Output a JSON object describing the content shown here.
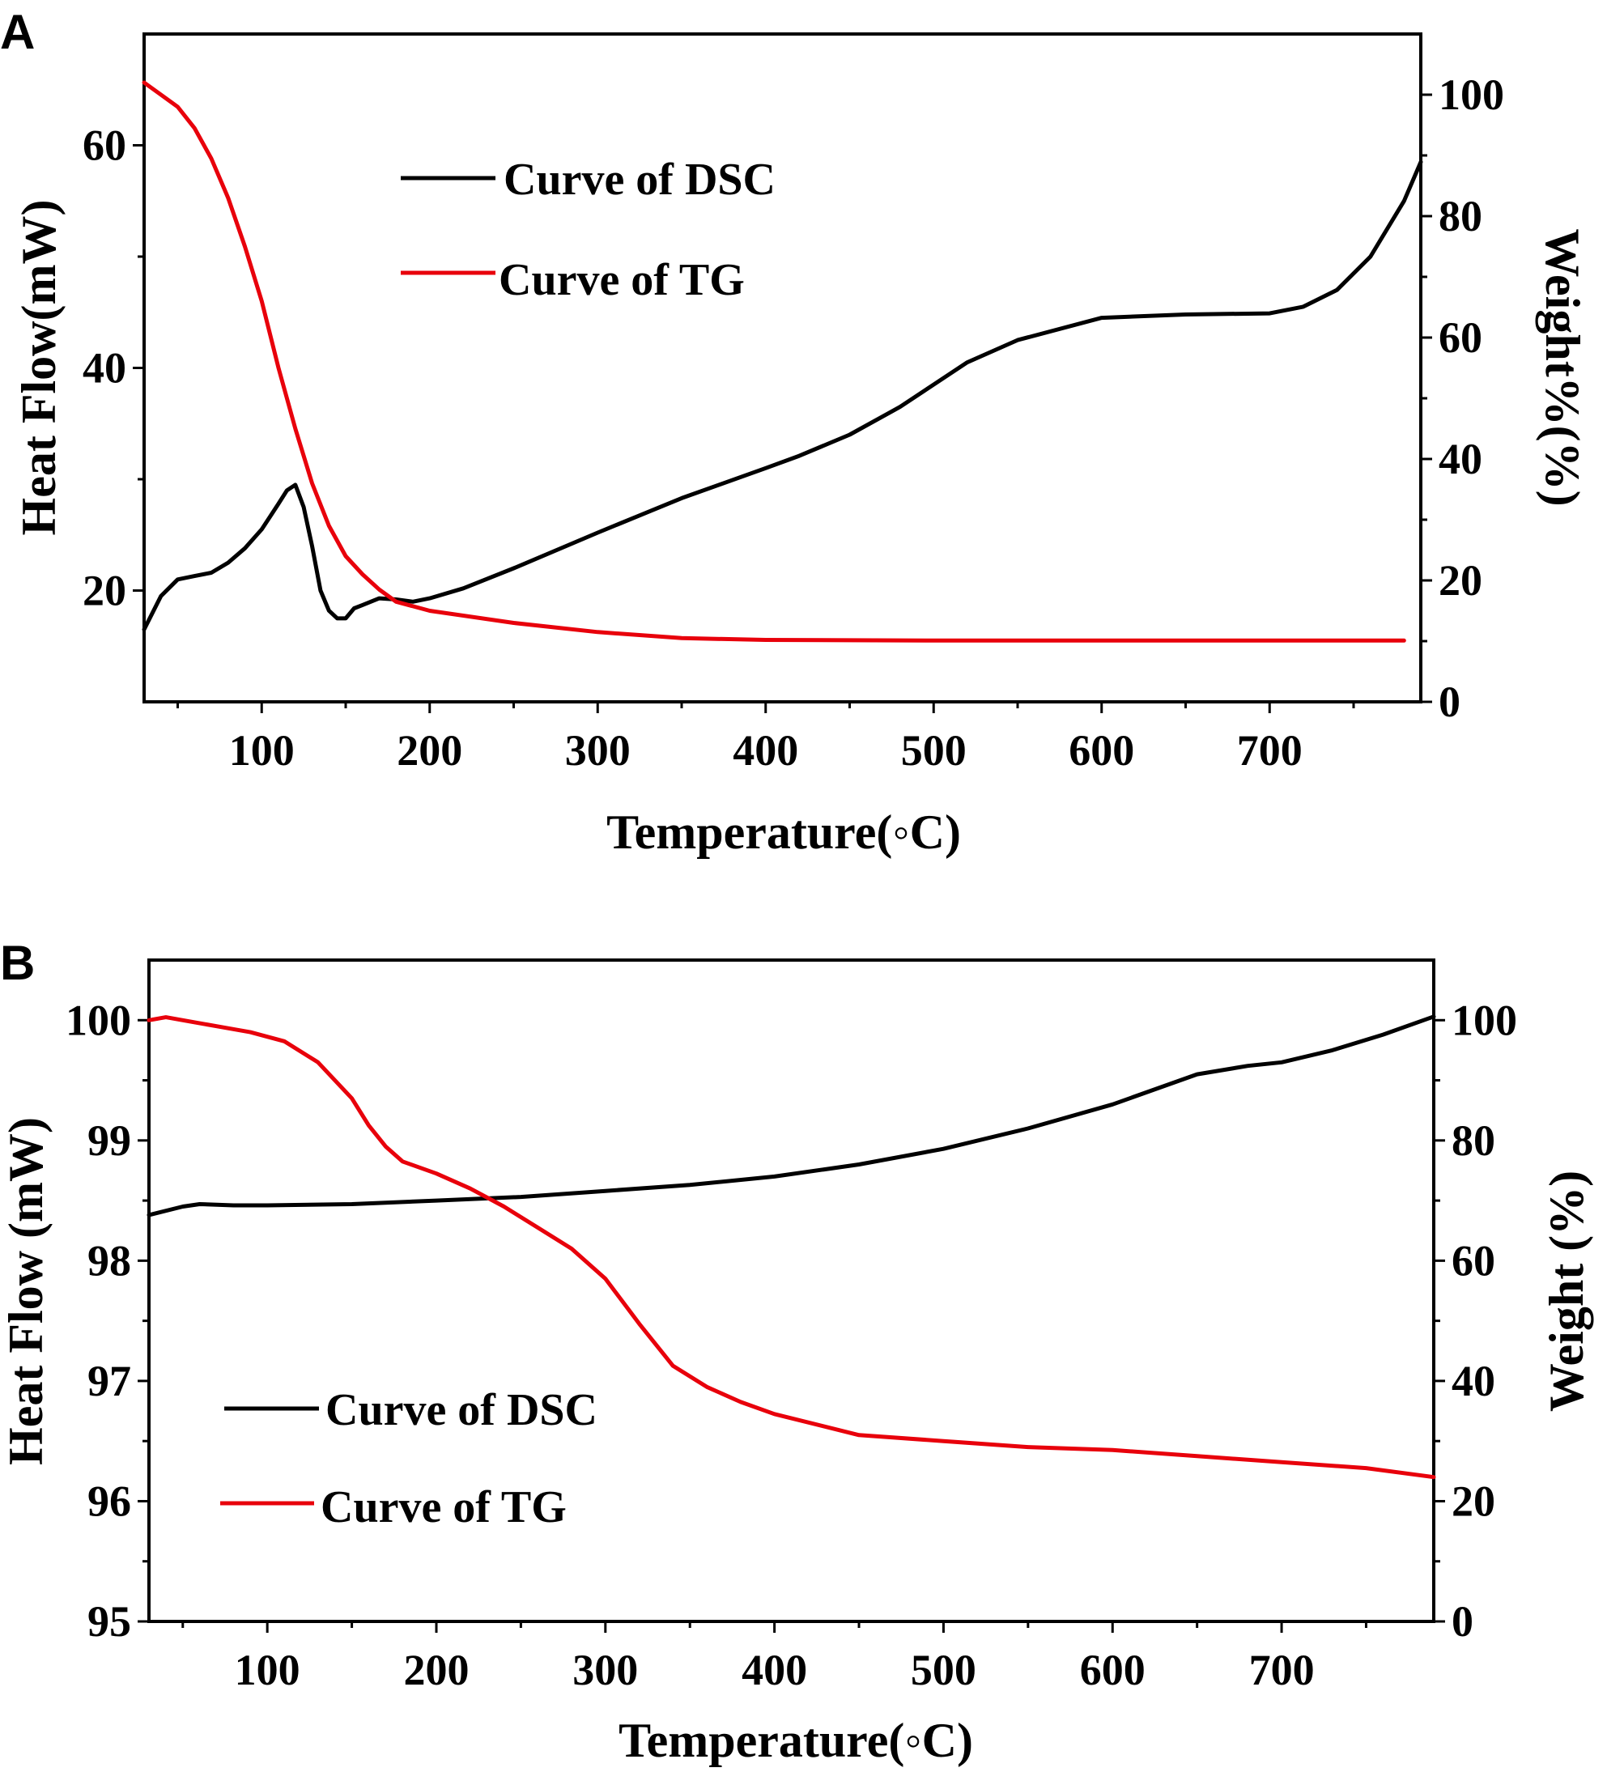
{
  "figure": {
    "colors": {
      "dsc": "#000000",
      "tg": "#e8000b",
      "axis": "#000000"
    }
  },
  "chart_data": [
    {
      "type": "line",
      "panel": "A",
      "title": "",
      "xlabel": "Temperature(◦C)",
      "ylabel": "Heat Flow(mW)",
      "y2label": "Weight%(%)",
      "xlim": [
        30,
        790
      ],
      "ylim": [
        10,
        70
      ],
      "y2lim": [
        0,
        110
      ],
      "xticks": [
        100,
        200,
        300,
        400,
        500,
        600,
        700
      ],
      "yticks": [
        20,
        40,
        60
      ],
      "y2ticks": [
        0,
        20,
        40,
        60,
        80,
        100
      ],
      "legend_position": "upper-left",
      "series": [
        {
          "name": "Curve of DSC",
          "axis": "left",
          "color": "#000000",
          "x": [
            30,
            40,
            50,
            60,
            70,
            80,
            90,
            100,
            110,
            115,
            120,
            125,
            130,
            135,
            140,
            145,
            150,
            155,
            160,
            170,
            180,
            190,
            200,
            220,
            250,
            300,
            350,
            400,
            420,
            450,
            480,
            500,
            520,
            550,
            600,
            650,
            700,
            720,
            740,
            760,
            780,
            790
          ],
          "values": [
            16.5,
            19.5,
            21,
            21.3,
            21.6,
            22.5,
            23.8,
            25.5,
            27.8,
            29,
            29.5,
            27.5,
            24,
            20,
            18.2,
            17.5,
            17.5,
            18.4,
            18.7,
            19.3,
            19.2,
            19.0,
            19.3,
            20.2,
            22,
            25.2,
            28.3,
            31.0,
            32.1,
            34.0,
            36.5,
            38.5,
            40.5,
            42.5,
            44.5,
            44.8,
            44.9,
            45.5,
            47,
            50,
            55,
            58.5
          ]
        },
        {
          "name": "Curve of TG",
          "axis": "right",
          "color": "#e8000b",
          "x": [
            30,
            40,
            50,
            60,
            70,
            80,
            90,
            100,
            110,
            120,
            130,
            140,
            150,
            160,
            170,
            180,
            200,
            250,
            300,
            350,
            400,
            500,
            600,
            700,
            780
          ],
          "values": [
            102,
            100,
            98,
            94.5,
            89.5,
            83,
            75,
            66,
            55,
            45,
            36,
            29,
            24,
            21,
            18.5,
            16.5,
            15,
            13,
            11.5,
            10.5,
            10.2,
            10.1,
            10.1,
            10.1,
            10.1
          ]
        }
      ]
    },
    {
      "type": "line",
      "panel": "B",
      "title": "",
      "xlabel": "Temperature(◦C)",
      "ylabel": "Heat Flow (mW)",
      "y2label": "Weight (%)",
      "xlim": [
        30,
        790
      ],
      "ylim": [
        95,
        100.5
      ],
      "y2lim": [
        0,
        110
      ],
      "xticks": [
        100,
        200,
        300,
        400,
        500,
        600,
        700
      ],
      "yticks": [
        95,
        96,
        97,
        98,
        99,
        100
      ],
      "y2ticks": [
        0,
        20,
        40,
        60,
        80,
        100
      ],
      "legend_position": "lower-left",
      "series": [
        {
          "name": "Curve of DSC",
          "axis": "left",
          "color": "#000000",
          "x": [
            30,
            50,
            60,
            80,
            100,
            150,
            200,
            250,
            300,
            350,
            400,
            450,
            500,
            550,
            600,
            650,
            680,
            700,
            730,
            760,
            790
          ],
          "values": [
            98.38,
            98.45,
            98.47,
            98.46,
            98.46,
            98.47,
            98.5,
            98.53,
            98.58,
            98.63,
            98.7,
            98.8,
            98.93,
            99.1,
            99.3,
            99.55,
            99.62,
            99.65,
            99.75,
            99.88,
            100.03
          ]
        },
        {
          "name": "Curve of TG",
          "axis": "right",
          "color": "#e8000b",
          "x": [
            30,
            40,
            50,
            70,
            90,
            110,
            130,
            150,
            160,
            170,
            180,
            200,
            220,
            240,
            260,
            280,
            300,
            320,
            340,
            360,
            380,
            400,
            450,
            500,
            550,
            600,
            650,
            700,
            750,
            790
          ],
          "values": [
            100,
            100.5,
            100,
            99,
            98,
            96.5,
            93,
            87,
            82.5,
            79,
            76.5,
            74.5,
            72,
            69,
            65.5,
            62,
            57,
            49.5,
            42.5,
            39,
            36.5,
            34.5,
            31,
            30,
            29,
            28.5,
            27.5,
            26.5,
            25.5,
            24
          ]
        }
      ]
    }
  ]
}
